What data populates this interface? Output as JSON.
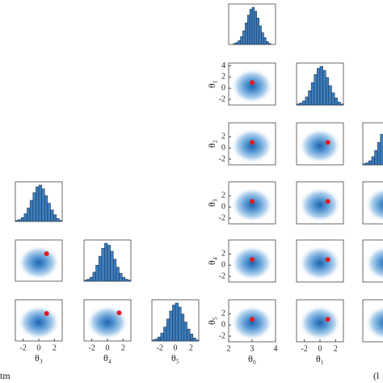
{
  "chart_data": [
    {
      "type": "histogram",
      "xlim": [
        -3,
        3
      ],
      "bins": [
        -3,
        -2.625,
        -2.25,
        -1.875,
        -1.5,
        -1.125,
        -0.75,
        -0.375,
        0,
        0.375,
        0.75,
        1.125,
        1.5,
        1.875,
        2.25,
        2.625,
        3
      ],
      "values": [
        1,
        2,
        4,
        8,
        14,
        22,
        30,
        36,
        38,
        34,
        27,
        19,
        12,
        7,
        3,
        1
      ],
      "color": "#3b7dbf"
    },
    {
      "type": "scatter",
      "xlim": [
        -3,
        3
      ],
      "ylim": [
        -3,
        3
      ],
      "x": [
        1
      ],
      "y": [
        1
      ],
      "color": "#e41a1c"
    },
    {
      "type": "histogram",
      "xlim": [
        -3,
        3
      ],
      "bins": [
        -3,
        -2.625,
        -2.25,
        -1.875,
        -1.5,
        -1.125,
        -0.75,
        -0.375,
        0,
        0.375,
        0.75,
        1.125,
        1.5,
        1.875,
        2.25,
        2.625,
        3
      ],
      "values": [
        1,
        2,
        4,
        9,
        16,
        25,
        33,
        38,
        36,
        30,
        22,
        14,
        8,
        4,
        2,
        1
      ],
      "color": "#3b7dbf"
    },
    {
      "type": "scatter",
      "xlim": [
        -3,
        3
      ],
      "ylim": [
        -3,
        3
      ],
      "x": [
        1
      ],
      "y": [
        1
      ],
      "color": "#e41a1c",
      "xticks": [
        -2,
        0,
        2
      ],
      "xlabel": "θ₃"
    },
    {
      "type": "scatter",
      "xlim": [
        -3,
        3
      ],
      "ylim": [
        -3,
        3
      ],
      "x": [
        1.5
      ],
      "y": [
        1.1
      ],
      "color": "#e41a1c",
      "xticks": [
        -2,
        0,
        2
      ],
      "xlabel": "θ₄"
    },
    {
      "type": "histogram",
      "xlim": [
        -3,
        3
      ],
      "bins": [
        -3,
        -2.625,
        -2.25,
        -1.875,
        -1.5,
        -1.125,
        -0.75,
        -0.375,
        0,
        0.375,
        0.75,
        1.125,
        1.5,
        1.875,
        2.25,
        2.625,
        3
      ],
      "values": [
        1,
        2,
        4,
        8,
        14,
        22,
        30,
        36,
        38,
        34,
        27,
        19,
        12,
        7,
        3,
        1
      ],
      "color": "#3b7dbf",
      "xticks": [
        -2,
        0,
        2
      ],
      "xlabel": "θ₅"
    },
    {
      "type": "histogram",
      "xlim": [
        2,
        4
      ],
      "bins": [
        2.2,
        2.3,
        2.4,
        2.5,
        2.6,
        2.7,
        2.8,
        2.9,
        3,
        3.1,
        3.2,
        3.3,
        3.4,
        3.5,
        3.6,
        3.7,
        3.8
      ],
      "values": [
        1,
        2,
        4,
        8,
        14,
        22,
        30,
        36,
        38,
        34,
        27,
        19,
        12,
        7,
        3,
        1
      ],
      "color": "#3b7dbf"
    },
    {
      "type": "scatter",
      "xlim": [
        2,
        4
      ],
      "ylim": [
        -3,
        4.5
      ],
      "x": [
        3
      ],
      "y": [
        1
      ],
      "color": "#e41a1c",
      "yticks": [
        -2,
        0,
        2,
        4
      ],
      "ylabel": "θ₁"
    },
    {
      "type": "histogram",
      "xlim": [
        -3,
        3
      ],
      "bins": [
        -3,
        -2.625,
        -2.25,
        -1.875,
        -1.5,
        -1.125,
        -0.75,
        -0.375,
        0,
        0.375,
        0.75,
        1.125,
        1.5,
        1.875,
        2.25,
        2.625,
        3
      ],
      "values": [
        1,
        2,
        4,
        8,
        14,
        22,
        30,
        36,
        38,
        34,
        27,
        19,
        12,
        7,
        3,
        1
      ],
      "color": "#3b7dbf"
    },
    {
      "type": "scatter",
      "xlim": [
        2,
        4
      ],
      "ylim": [
        -3,
        4.5
      ],
      "x": [
        3
      ],
      "y": [
        1
      ],
      "color": "#e41a1c",
      "yticks": [
        -2,
        0,
        2
      ],
      "ylabel": "θ₂"
    },
    {
      "type": "scatter",
      "xlim": [
        -3,
        3
      ],
      "ylim": [
        -3,
        4.5
      ],
      "x": [
        1
      ],
      "y": [
        1
      ],
      "color": "#e41a1c"
    },
    {
      "type": "histogram",
      "xlim": [
        -3,
        3
      ],
      "bins": [
        -3,
        -2.625,
        -2.25,
        -1.875,
        -1.5,
        -1.125,
        -0.75,
        -0.375,
        0,
        0.375,
        0.75,
        1.125,
        1.5,
        1.875,
        2.25,
        2.625,
        3
      ],
      "values": [
        1,
        2,
        4,
        8,
        14,
        22,
        30,
        36,
        38,
        34,
        27,
        19,
        12,
        7,
        3,
        1
      ],
      "color": "#3b7dbf"
    },
    {
      "type": "scatter",
      "xlim": [
        2,
        4
      ],
      "ylim": [
        -3,
        4.5
      ],
      "x": [
        3
      ],
      "y": [
        1
      ],
      "color": "#e41a1c",
      "yticks": [
        -2,
        0,
        2
      ],
      "ylabel": "θ₃"
    },
    {
      "type": "scatter",
      "xlim": [
        -3,
        3
      ],
      "ylim": [
        -3,
        4.5
      ],
      "x": [
        1
      ],
      "y": [
        1
      ],
      "color": "#e41a1c"
    },
    {
      "type": "scatter",
      "xlim": [
        -3,
        3
      ],
      "ylim": [
        -3,
        4.5
      ]
    },
    {
      "type": "scatter",
      "xlim": [
        2,
        4
      ],
      "ylim": [
        -3,
        4.5
      ],
      "x": [
        3
      ],
      "y": [
        1
      ],
      "color": "#e41a1c",
      "yticks": [
        -2,
        0,
        2
      ],
      "ylabel": "θ₄"
    },
    {
      "type": "scatter",
      "xlim": [
        -3,
        3
      ],
      "ylim": [
        -3,
        4.5
      ],
      "x": [
        1
      ],
      "y": [
        1
      ],
      "color": "#e41a1c"
    },
    {
      "type": "scatter",
      "xlim": [
        -3,
        3
      ],
      "ylim": [
        -3,
        4.5
      ]
    },
    {
      "type": "scatter",
      "xlim": [
        2,
        4
      ],
      "ylim": [
        -3,
        4.5
      ],
      "x": [
        3
      ],
      "y": [
        1
      ],
      "color": "#e41a1c",
      "xticks": [
        2,
        3,
        4
      ],
      "xlabel": "θ₀",
      "yticks": [
        -2,
        0,
        2
      ],
      "ylabel": "θ₅"
    },
    {
      "type": "scatter",
      "xlim": [
        -3,
        3
      ],
      "ylim": [
        -3,
        4.5
      ],
      "x": [
        1
      ],
      "y": [
        1
      ],
      "color": "#e41a1c",
      "xticks": [
        -2,
        0,
        2
      ],
      "xlabel": "θ₁"
    },
    {
      "type": "scatter",
      "xlim": [
        -3,
        3
      ],
      "ylim": [
        -3,
        4.5
      ]
    }
  ],
  "caption_fragments": [
    "tm",
    "(l"
  ]
}
